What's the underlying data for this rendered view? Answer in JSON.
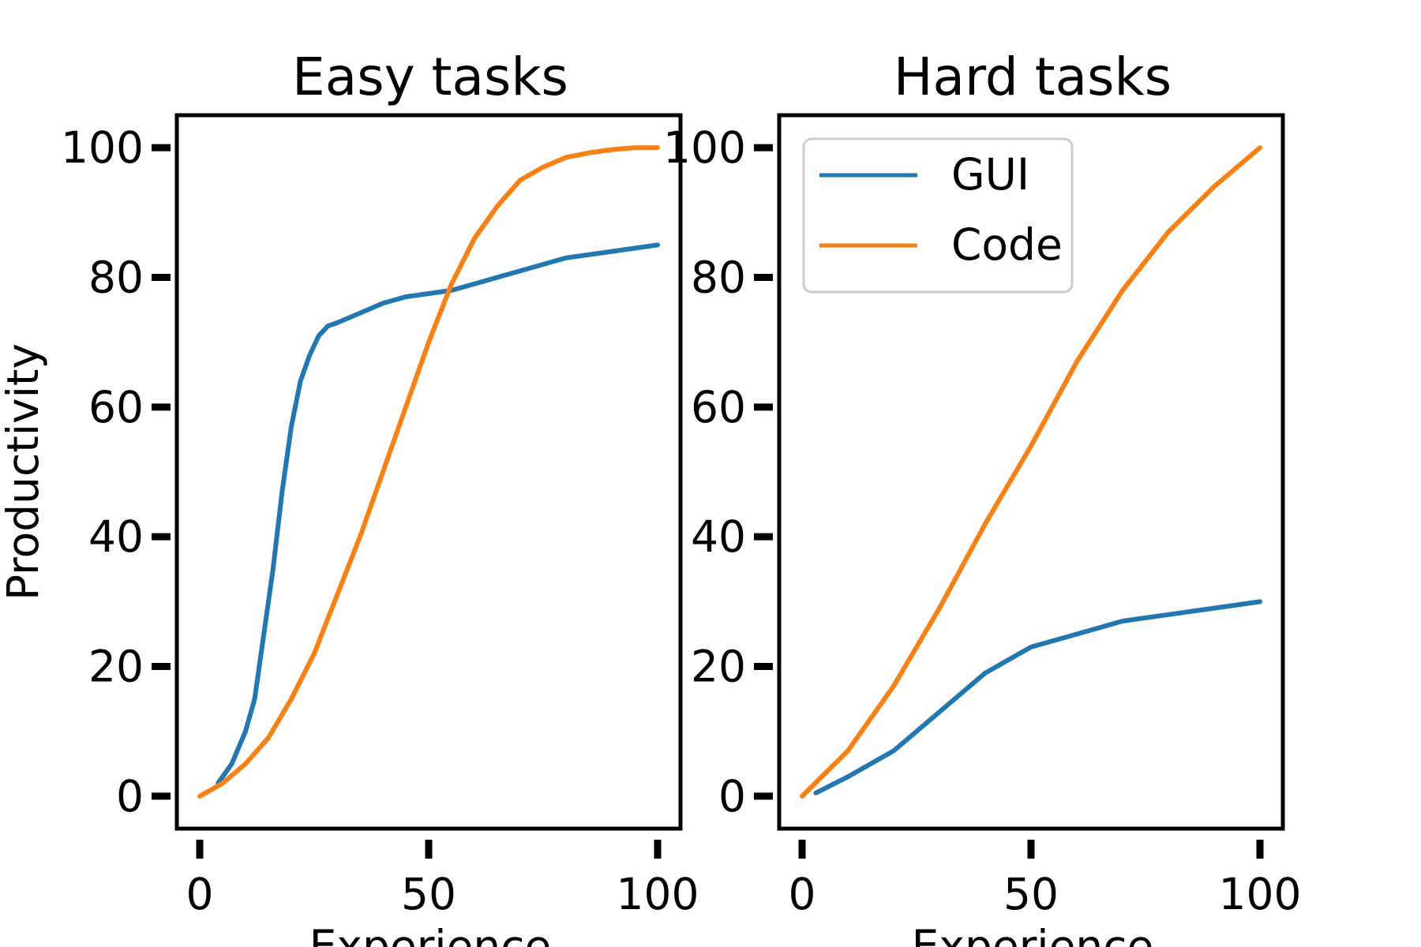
{
  "chart_data": [
    {
      "type": "line",
      "title": "Easy tasks",
      "xlabel": "Experience",
      "ylabel": "Productivity",
      "xlim": [
        -5,
        105
      ],
      "ylim": [
        -5,
        105
      ],
      "xticks": [
        "0",
        "50",
        "100"
      ],
      "yticks": [
        "0",
        "20",
        "40",
        "60",
        "80",
        "100"
      ],
      "grid": false,
      "series": [
        {
          "name": "GUI",
          "color": "#1f77b4",
          "x": [
            4,
            7,
            10,
            12,
            14,
            16,
            18,
            20,
            22,
            24,
            26,
            28,
            30,
            35,
            40,
            45,
            50,
            55,
            60,
            70,
            80,
            90,
            100
          ],
          "y": [
            2,
            5,
            10,
            15,
            25,
            35,
            47,
            57,
            64,
            68,
            71,
            72.5,
            73,
            74.5,
            76,
            77,
            77.5,
            78,
            79,
            81,
            83,
            84,
            85
          ]
        },
        {
          "name": "Code",
          "color": "#ff7f0e",
          "x": [
            0,
            5,
            10,
            15,
            20,
            25,
            30,
            35,
            40,
            45,
            50,
            55,
            60,
            65,
            70,
            75,
            80,
            85,
            90,
            95,
            100
          ],
          "y": [
            0,
            2,
            5,
            9,
            15,
            22,
            31,
            40,
            50,
            60,
            70,
            79,
            86,
            91,
            95,
            97,
            98.5,
            99.2,
            99.7,
            100,
            100
          ]
        }
      ]
    },
    {
      "type": "line",
      "title": "Hard tasks",
      "xlabel": "Experience",
      "xlim": [
        -5,
        105
      ],
      "ylim": [
        -5,
        105
      ],
      "xticks": [
        "0",
        "50",
        "100"
      ],
      "yticks": [
        "0",
        "20",
        "40",
        "60",
        "80",
        "100"
      ],
      "grid": false,
      "legend": {
        "position": "top-left",
        "entries": [
          "GUI",
          "Code"
        ]
      },
      "series": [
        {
          "name": "GUI",
          "color": "#1f77b4",
          "x": [
            3,
            10,
            20,
            30,
            40,
            50,
            60,
            70,
            80,
            90,
            100
          ],
          "y": [
            0.5,
            3,
            7,
            13,
            19,
            23,
            25,
            27,
            28,
            29,
            30
          ]
        },
        {
          "name": "Code",
          "color": "#ff7f0e",
          "x": [
            0,
            10,
            20,
            30,
            40,
            50,
            60,
            70,
            80,
            90,
            100
          ],
          "y": [
            0,
            7,
            17,
            29,
            42,
            54,
            67,
            78,
            87,
            94,
            100
          ]
        }
      ]
    }
  ]
}
